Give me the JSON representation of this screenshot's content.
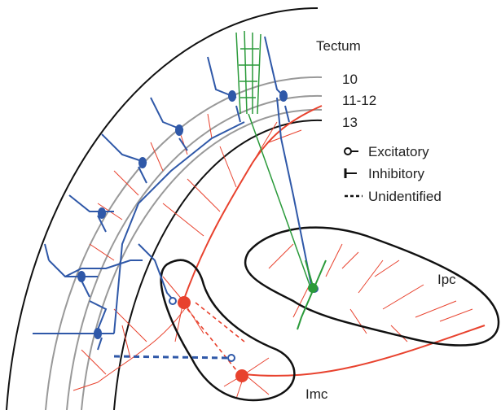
{
  "region": "Tectum",
  "layers": [
    "10",
    "11-12",
    "13"
  ],
  "legend": [
    "Excitatory",
    "Inhibitory",
    "Unidentified"
  ],
  "nuclei": [
    "Ipc",
    "Imc"
  ]
}
